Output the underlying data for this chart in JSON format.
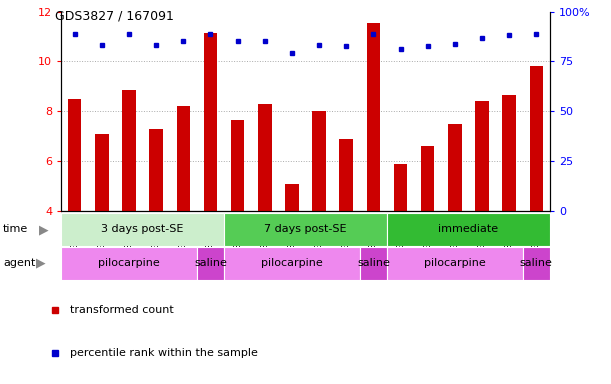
{
  "title": "GDS3827 / 167091",
  "samples": [
    "GSM367527",
    "GSM367528",
    "GSM367531",
    "GSM367532",
    "GSM367534",
    "GSM367718",
    "GSM367536",
    "GSM367538",
    "GSM367539",
    "GSM367540",
    "GSM367541",
    "GSM367719",
    "GSM367545",
    "GSM367546",
    "GSM367548",
    "GSM367549",
    "GSM367551",
    "GSM367721"
  ],
  "red_values": [
    8.5,
    7.1,
    8.85,
    7.3,
    8.2,
    11.15,
    7.65,
    8.3,
    5.1,
    8.0,
    6.9,
    11.55,
    5.9,
    6.6,
    7.5,
    8.4,
    8.65,
    9.8
  ],
  "blue_values": [
    11.1,
    10.65,
    11.1,
    10.65,
    10.8,
    11.1,
    10.8,
    10.8,
    10.35,
    10.65,
    10.6,
    11.1,
    10.5,
    10.6,
    10.7,
    10.95,
    11.05,
    11.1
  ],
  "ylim": [
    4,
    12
  ],
  "yticks_left": [
    4,
    6,
    8,
    10,
    12
  ],
  "yticks_right": [
    0,
    25,
    50,
    75,
    100
  ],
  "bar_color": "#cc0000",
  "dot_color": "#0000cc",
  "grid_dotted_values": [
    6,
    8,
    10
  ],
  "legend_red": "transformed count",
  "legend_blue": "percentile rank within the sample",
  "bar_bottom": 4,
  "background_color": "#ffffff",
  "tick_area_color": "#cccccc",
  "right_ytick_labels": [
    "0",
    "25",
    "50",
    "75",
    "100%"
  ],
  "time_groups": [
    {
      "label": "3 days post-SE",
      "start": 0,
      "end": 5,
      "color": "#cceecc"
    },
    {
      "label": "7 days post-SE",
      "start": 6,
      "end": 11,
      "color": "#55cc55"
    },
    {
      "label": "immediate",
      "start": 12,
      "end": 17,
      "color": "#33bb33"
    }
  ],
  "agent_groups": [
    {
      "label": "pilocarpine",
      "start": 0,
      "end": 4,
      "color": "#ee88ee"
    },
    {
      "label": "saline",
      "start": 5,
      "end": 5,
      "color": "#cc44cc"
    },
    {
      "label": "pilocarpine",
      "start": 6,
      "end": 10,
      "color": "#ee88ee"
    },
    {
      "label": "saline",
      "start": 11,
      "end": 11,
      "color": "#cc44cc"
    },
    {
      "label": "pilocarpine",
      "start": 12,
      "end": 16,
      "color": "#ee88ee"
    },
    {
      "label": "saline",
      "start": 17,
      "end": 17,
      "color": "#cc44cc"
    }
  ]
}
